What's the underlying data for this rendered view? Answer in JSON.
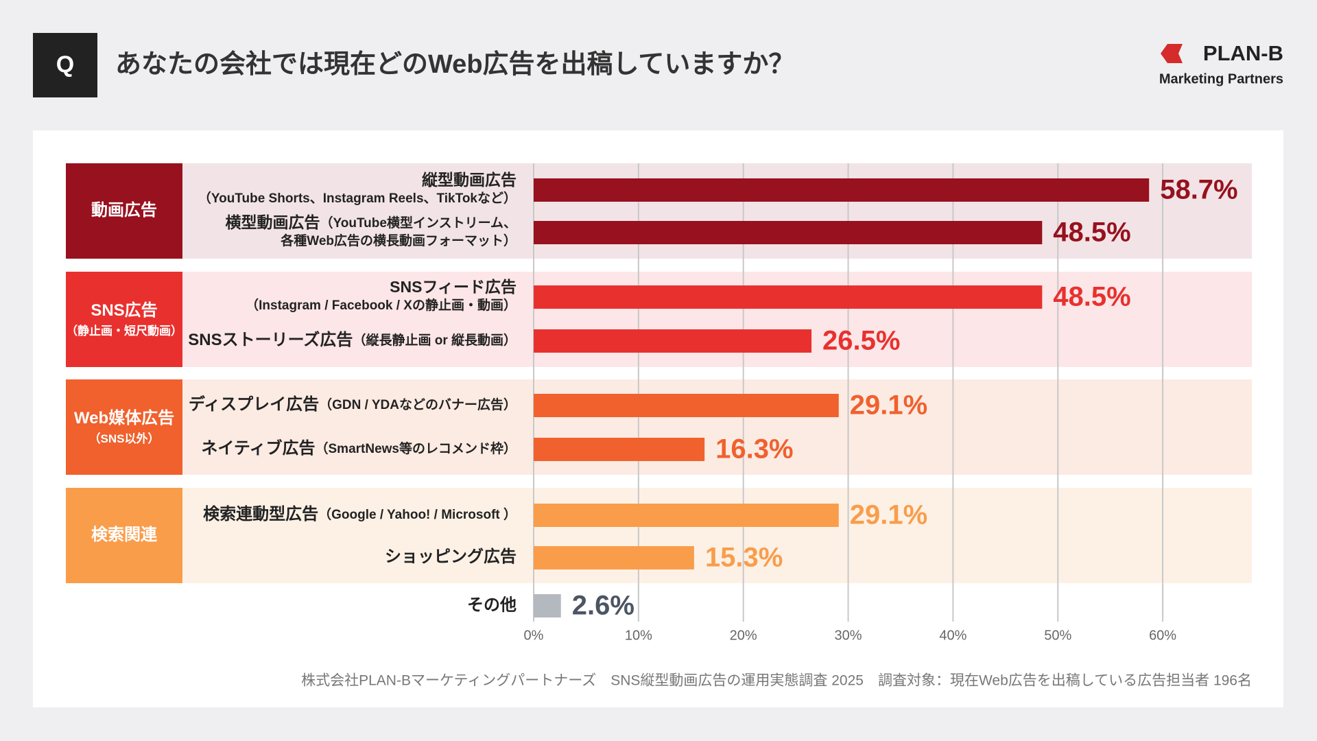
{
  "header": {
    "q": "Q",
    "title": "あなたの会社では現在どのWeb広告を出稿していますか？",
    "logo": "PLAN-B",
    "logo_sub": "Marketing Partners"
  },
  "chart_data": {
    "type": "bar",
    "xlim": [
      0,
      68.5
    ],
    "xticks": [
      {
        "value": 0,
        "label": "0%"
      },
      {
        "value": 10,
        "label": "10%"
      },
      {
        "value": 20,
        "label": "20%"
      },
      {
        "value": 30,
        "label": "30%"
      },
      {
        "value": 40,
        "label": "40%"
      },
      {
        "value": 50,
        "label": "50%"
      },
      {
        "value": 60,
        "label": "60%"
      }
    ],
    "grid": true,
    "groups": [
      {
        "name": "動画広告",
        "note": null,
        "color": "#97111e",
        "background": "#f2e4e6",
        "categories": [
          "縦型動画広告",
          "横型動画広告"
        ],
        "category_notes": [
          [
            "（YouTube Shorts、Instagram Reels、TikTokなど）"
          ],
          [
            "（YouTube横型インストリーム、",
            "各種Web広告の横長動画フォーマット）"
          ]
        ],
        "values": [
          58.7,
          48.5
        ],
        "value_labels": [
          "58.7%",
          "48.5%"
        ]
      },
      {
        "name": "SNS広告",
        "note": "（静止画・短尺動画）",
        "color": "#e8312f",
        "background": "#fce6e7",
        "categories": [
          "SNSフィード広告",
          "SNSストーリーズ広告"
        ],
        "category_notes": [
          [
            "（Instagram / Facebook / Xの静止画・動画）"
          ],
          [
            "（縦長静止画 or 縦長動画）"
          ]
        ],
        "values": [
          48.5,
          26.5
        ],
        "value_labels": [
          "48.5%",
          "26.5%"
        ]
      },
      {
        "name": "Web媒体広告",
        "note": "（SNS以外）",
        "color": "#f0612d",
        "background": "#fcebe3",
        "categories": [
          "ディスプレイ広告",
          "ネイティブ広告"
        ],
        "category_notes": [
          [
            "（GDN / YDAなどのバナー広告）"
          ],
          [
            "（SmartNews等のレコメンド枠）"
          ]
        ],
        "values": [
          29.1,
          16.3
        ],
        "value_labels": [
          "29.1%",
          "16.3%"
        ]
      },
      {
        "name": "検索関連",
        "note": null,
        "color": "#f99d4b",
        "background": "#fdf1e6",
        "categories": [
          "検索連動型広告",
          "ショッピング広告"
        ],
        "category_notes": [
          [
            "（Google / Yahoo! / Microsoft ）"
          ],
          null
        ],
        "values": [
          29.1,
          15.3
        ],
        "value_labels": [
          "29.1%",
          "15.3%"
        ]
      }
    ],
    "other": {
      "category": "その他",
      "value": 2.6,
      "value_label": "2.6%",
      "color": "#b4b8bf",
      "label_color": "#4b5563"
    },
    "source": "株式会社PLAN-Bマーケティングパートナーズ　SNS縦型動画広告の運用実態調査 2025　調査対象：現在Web広告を出稿している広告担当者 196名"
  }
}
